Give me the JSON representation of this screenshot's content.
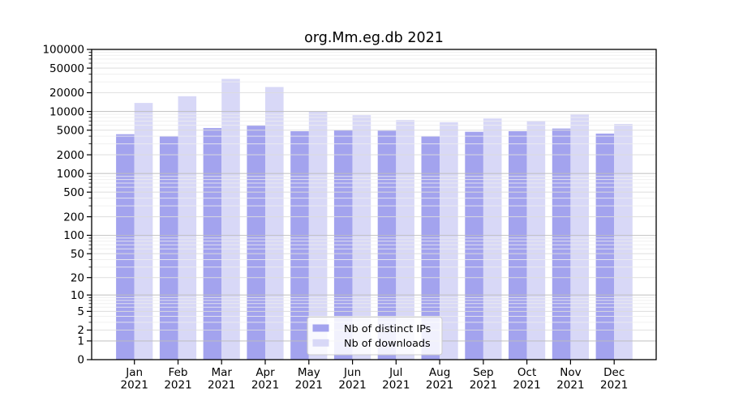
{
  "title": "org.Mm.eg.db 2021",
  "chart_data": {
    "type": "bar",
    "title": "org.Mm.eg.db 2021",
    "xlabel": "",
    "ylabel": "",
    "y_scale": "log10(1+v) from 0",
    "ylim": [
      0,
      100000
    ],
    "grid": "major and minor horizontal gridlines, drawn over bars",
    "legend_position": "lower center inside plot",
    "categories": [
      {
        "month": "Jan",
        "year": "2021"
      },
      {
        "month": "Feb",
        "year": "2021"
      },
      {
        "month": "Mar",
        "year": "2021"
      },
      {
        "month": "Apr",
        "year": "2021"
      },
      {
        "month": "May",
        "year": "2021"
      },
      {
        "month": "Jun",
        "year": "2021"
      },
      {
        "month": "Jul",
        "year": "2021"
      },
      {
        "month": "Aug",
        "year": "2021"
      },
      {
        "month": "Sep",
        "year": "2021"
      },
      {
        "month": "Oct",
        "year": "2021"
      },
      {
        "month": "Nov",
        "year": "2021"
      },
      {
        "month": "Dec",
        "year": "2021"
      }
    ],
    "y_ticks": [
      0,
      1,
      2,
      5,
      10,
      20,
      50,
      100,
      200,
      500,
      1000,
      2000,
      5000,
      10000,
      20000,
      50000,
      100000
    ],
    "y_tick_labels": [
      "0",
      "1",
      "2",
      "5",
      "10",
      "20",
      "50",
      "100",
      "200",
      "500",
      "1000",
      "2000",
      "5000",
      "10000",
      "20000",
      "50000",
      "100000"
    ],
    "series": [
      {
        "name": "Nb of distinct IPs",
        "color": "#a3a3ee",
        "values": [
          4300,
          4000,
          5400,
          5900,
          4800,
          5000,
          4900,
          4000,
          4700,
          4800,
          5300,
          4400
        ]
      },
      {
        "name": "Nb of downloads",
        "color": "#d8d8f7",
        "values": [
          13700,
          17600,
          33500,
          24800,
          9900,
          8700,
          7300,
          6700,
          7700,
          7100,
          9100,
          6300
        ]
      }
    ]
  }
}
